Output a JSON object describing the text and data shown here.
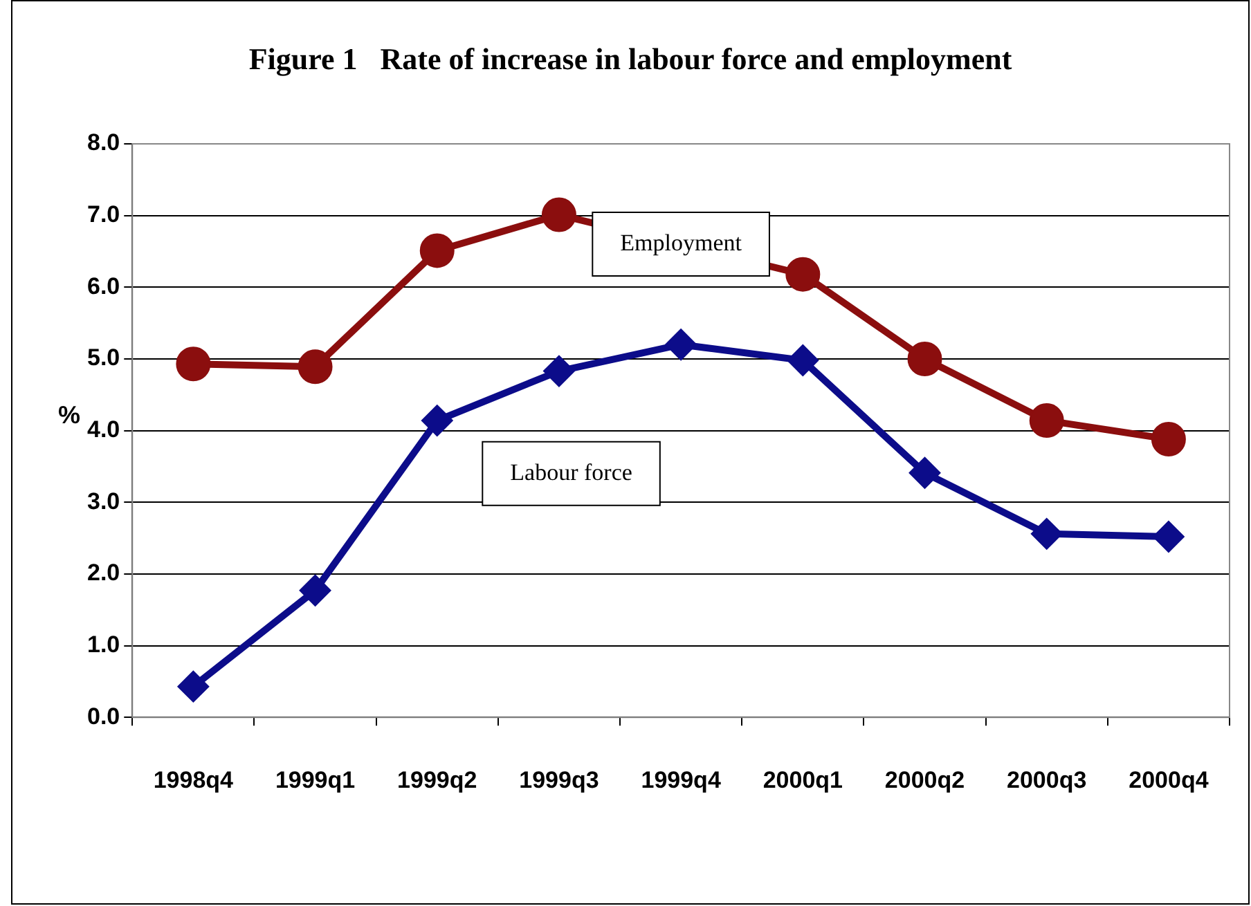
{
  "chart_data": {
    "type": "line",
    "title": "Figure 1   Rate of increase in labour force and employment",
    "ylabel": "%",
    "categories": [
      "1998q4",
      "1999q1",
      "1999q2",
      "1999q3",
      "1999q4",
      "2000q1",
      "2000q2",
      "2000q3",
      "2000q4"
    ],
    "series": [
      {
        "name": "Employment",
        "color": "#8b0e0e",
        "marker": "circle",
        "values": [
          4.93,
          4.89,
          6.51,
          7.01,
          null,
          6.18,
          5.0,
          4.14,
          3.88
        ]
      },
      {
        "name": "Labour force",
        "color": "#0c0c8a",
        "marker": "diamond",
        "values": [
          0.43,
          1.77,
          4.14,
          4.83,
          5.2,
          4.98,
          3.41,
          2.56,
          2.52
        ]
      }
    ],
    "ylim": [
      0,
      8
    ],
    "yticks": [
      {
        "value": 0,
        "label": "0.0"
      },
      {
        "value": 1,
        "label": "1.0"
      },
      {
        "value": 2,
        "label": "2.0"
      },
      {
        "value": 3,
        "label": "3.0"
      },
      {
        "value": 4,
        "label": "4.0"
      },
      {
        "value": 5,
        "label": "5.0"
      },
      {
        "value": 6,
        "label": "6.0"
      },
      {
        "value": 7,
        "label": "7.0"
      },
      {
        "value": 8,
        "label": "8.0"
      }
    ],
    "grid": "y",
    "legend": false
  }
}
